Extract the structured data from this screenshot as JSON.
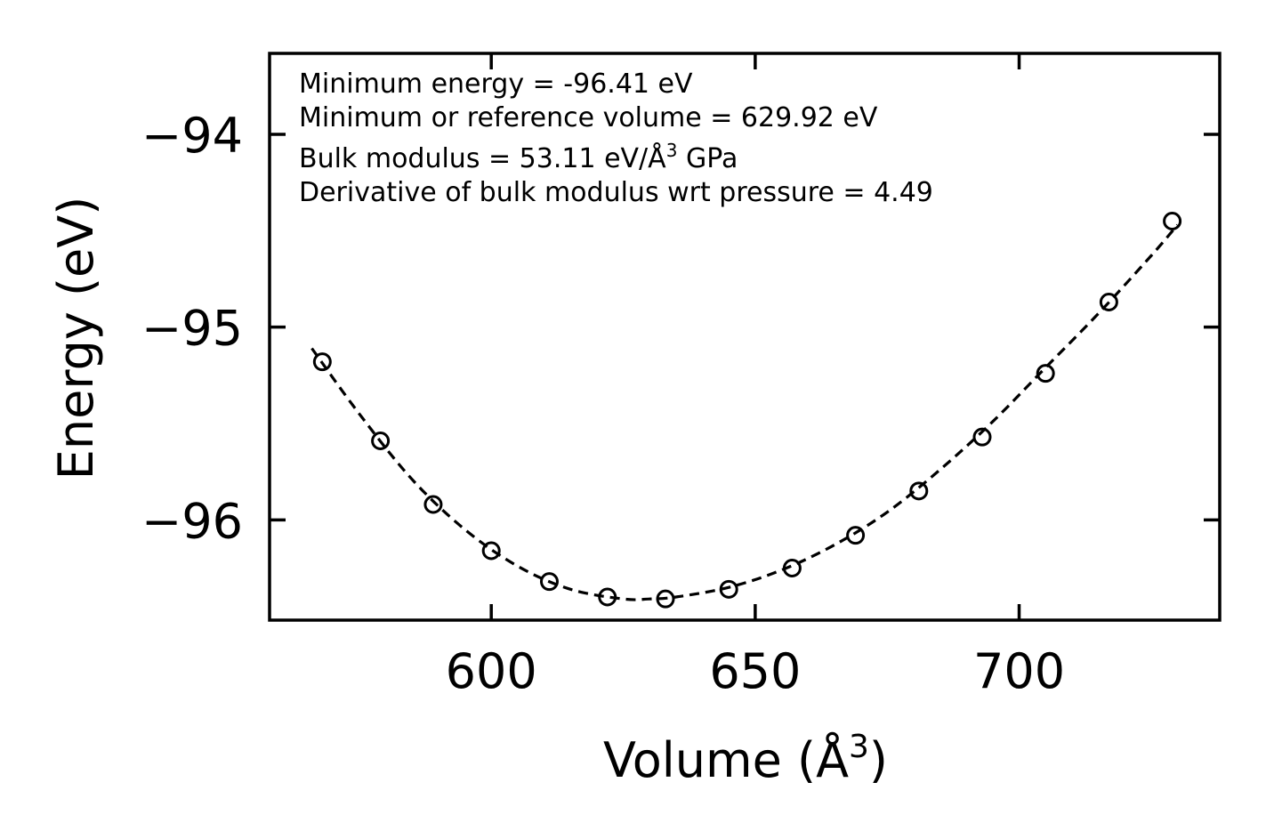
{
  "chart_data": {
    "type": "scatter",
    "title": "",
    "xlabel": "Volume (Å",
    "xlabel_sup": "3",
    "xlabel_close": ")",
    "ylabel": "Energy (eV)",
    "xlim": [
      558,
      738
    ],
    "ylim": [
      -96.52,
      -93.58
    ],
    "xticks": [
      600,
      650,
      700
    ],
    "xtick_labels": [
      "600",
      "650",
      "700"
    ],
    "yticks": [
      -96,
      -95,
      -94
    ],
    "ytick_labels": [
      "−96",
      "−95",
      "−94"
    ],
    "grid": false,
    "series": [
      {
        "name": "data",
        "marker": "open-circle",
        "x": [
          568,
          579,
          589,
          600,
          611,
          622,
          633,
          645,
          657,
          669,
          681,
          693,
          705,
          717,
          729
        ],
        "y": [
          -95.18,
          -95.59,
          -95.92,
          -96.16,
          -96.32,
          -96.4,
          -96.41,
          -96.36,
          -96.25,
          -96.08,
          -95.85,
          -95.57,
          -95.24,
          -94.87,
          -94.45
        ]
      },
      {
        "name": "fit",
        "style": "dashed",
        "x": [
          566,
          575,
          585,
          595,
          605,
          615,
          625,
          630,
          635,
          645,
          655,
          665,
          675,
          685,
          695,
          705,
          715,
          725,
          730
        ],
        "y": [
          -95.11,
          -95.45,
          -95.79,
          -96.05,
          -96.24,
          -96.36,
          -96.41,
          -96.41,
          -96.4,
          -96.35,
          -96.26,
          -96.13,
          -95.96,
          -95.74,
          -95.49,
          -95.21,
          -94.93,
          -94.63,
          -94.47
        ]
      }
    ],
    "annotations": [
      {
        "text": "Minimum energy = -96.41 eV"
      },
      {
        "text": "Minimum or reference volume = 629.92 eV"
      },
      {
        "text": "Bulk modulus = 53.11 eV/Å",
        "sup": "3",
        "tail": " GPa"
      },
      {
        "text": "Derivative of bulk modulus wrt pressure = 4.49"
      }
    ]
  }
}
